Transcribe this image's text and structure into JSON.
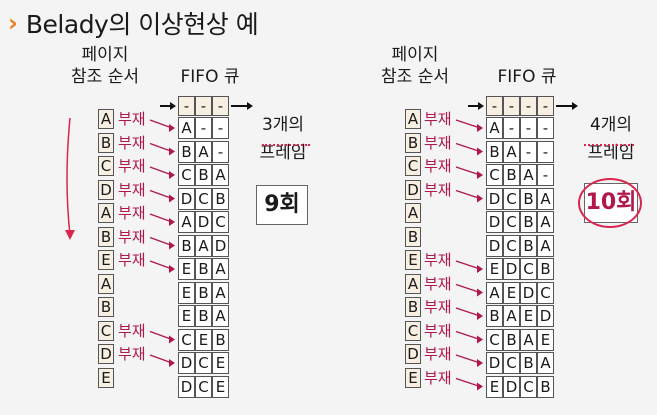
{
  "title": {
    "text": "Belady의 이상현상 예",
    "icon": "chevron-right-icon"
  },
  "left": {
    "ref_label_1": "페이지",
    "ref_label_2": "참조 순서",
    "fifo_label": "FIFO 큐",
    "frame_label_1": "3개의",
    "frame_label_2": "프레임",
    "count": "9회",
    "ref": [
      "A",
      "B",
      "C",
      "D",
      "A",
      "B",
      "E",
      "A",
      "B",
      "C",
      "D",
      "E"
    ],
    "init": [
      "-",
      "-",
      "-"
    ],
    "rows": [
      [
        "A",
        "-",
        "-"
      ],
      [
        "B",
        "A",
        "-"
      ],
      [
        "C",
        "B",
        "A"
      ],
      [
        "D",
        "C",
        "B"
      ],
      [
        "A",
        "D",
        "C"
      ],
      [
        "B",
        "A",
        "D"
      ],
      [
        "E",
        "B",
        "A"
      ],
      [
        "E",
        "B",
        "A"
      ],
      [
        "E",
        "B",
        "A"
      ],
      [
        "C",
        "E",
        "B"
      ],
      [
        "D",
        "C",
        "E"
      ],
      [
        "D",
        "C",
        "E"
      ]
    ],
    "fault": [
      true,
      true,
      true,
      true,
      true,
      true,
      true,
      false,
      false,
      true,
      true,
      false
    ]
  },
  "right": {
    "ref_label_1": "페이지",
    "ref_label_2": "참조 순서",
    "fifo_label": "FIFO 큐",
    "frame_label_1": "4개의",
    "frame_label_2": "프레임",
    "count": "10회",
    "ref": [
      "A",
      "B",
      "C",
      "D",
      "A",
      "B",
      "E",
      "A",
      "B",
      "C",
      "D",
      "E"
    ],
    "init": [
      "-",
      "-",
      "-",
      "-"
    ],
    "rows": [
      [
        "A",
        "-",
        "-",
        "-"
      ],
      [
        "B",
        "A",
        "-",
        "-"
      ],
      [
        "C",
        "B",
        "A",
        "-"
      ],
      [
        "D",
        "C",
        "B",
        "A"
      ],
      [
        "D",
        "C",
        "B",
        "A"
      ],
      [
        "D",
        "C",
        "B",
        "A"
      ],
      [
        "E",
        "D",
        "C",
        "B"
      ],
      [
        "A",
        "E",
        "D",
        "C"
      ],
      [
        "B",
        "A",
        "E",
        "D"
      ],
      [
        "C",
        "B",
        "A",
        "E"
      ],
      [
        "D",
        "C",
        "B",
        "A"
      ],
      [
        "E",
        "D",
        "C",
        "B"
      ]
    ],
    "fault": [
      true,
      true,
      true,
      true,
      false,
      false,
      true,
      true,
      true,
      true,
      true,
      true
    ]
  },
  "fault_label": "부재",
  "colors": {
    "accent": "#e8821e",
    "fault": "#b0174a",
    "highlight": "#d8264f"
  }
}
